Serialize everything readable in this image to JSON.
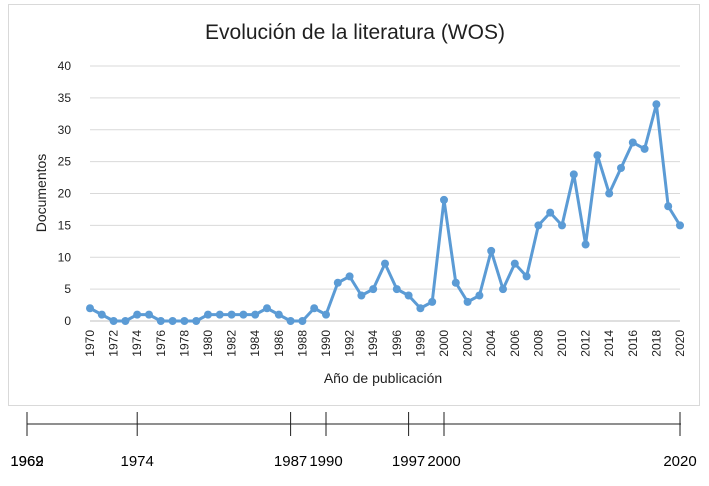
{
  "chart_data": {
    "type": "line",
    "title": "Evolución de la literatura (WOS)",
    "xlabel": "Año de publicación",
    "ylabel": "Documentos",
    "ylim": [
      0,
      40
    ],
    "y_ticks": [
      0,
      5,
      10,
      15,
      20,
      25,
      30,
      35,
      40
    ],
    "grid": true,
    "x": [
      1970,
      1971,
      1972,
      1973,
      1974,
      1975,
      1976,
      1977,
      1978,
      1979,
      1980,
      1981,
      1982,
      1983,
      1984,
      1985,
      1986,
      1987,
      1988,
      1989,
      1990,
      1991,
      1992,
      1993,
      1994,
      1995,
      1996,
      1997,
      1998,
      1999,
      2000,
      2001,
      2002,
      2003,
      2004,
      2005,
      2006,
      2007,
      2008,
      2009,
      2010,
      2011,
      2012,
      2013,
      2014,
      2015,
      2016,
      2017,
      2018,
      2019,
      2020
    ],
    "x_tick_labels": [
      "1970",
      "1972",
      "1974",
      "1976",
      "1978",
      "1980",
      "1982",
      "1984",
      "1986",
      "1988",
      "1990",
      "1992",
      "1994",
      "1996",
      "1998",
      "2000",
      "2002",
      "2004",
      "2006",
      "2008",
      "2010",
      "2012",
      "2014",
      "2016",
      "2018",
      "2020"
    ],
    "series": [
      {
        "values": [
          2,
          1,
          0,
          0,
          1,
          1,
          0,
          0,
          0,
          0,
          1,
          1,
          1,
          1,
          1,
          2,
          1,
          0,
          0,
          2,
          1,
          6,
          7,
          4,
          5,
          9,
          5,
          4,
          2,
          3,
          19,
          6,
          3,
          4,
          11,
          5,
          9,
          7,
          15,
          17,
          15,
          23,
          12,
          26,
          20,
          24,
          28,
          27,
          34,
          18,
          15
        ],
        "color": "#5b9bd5"
      }
    ]
  },
  "timeline": {
    "labels": [
      "1962",
      "1969",
      "1974",
      "1987",
      "1990",
      "1997",
      "2000",
      "2020"
    ]
  }
}
